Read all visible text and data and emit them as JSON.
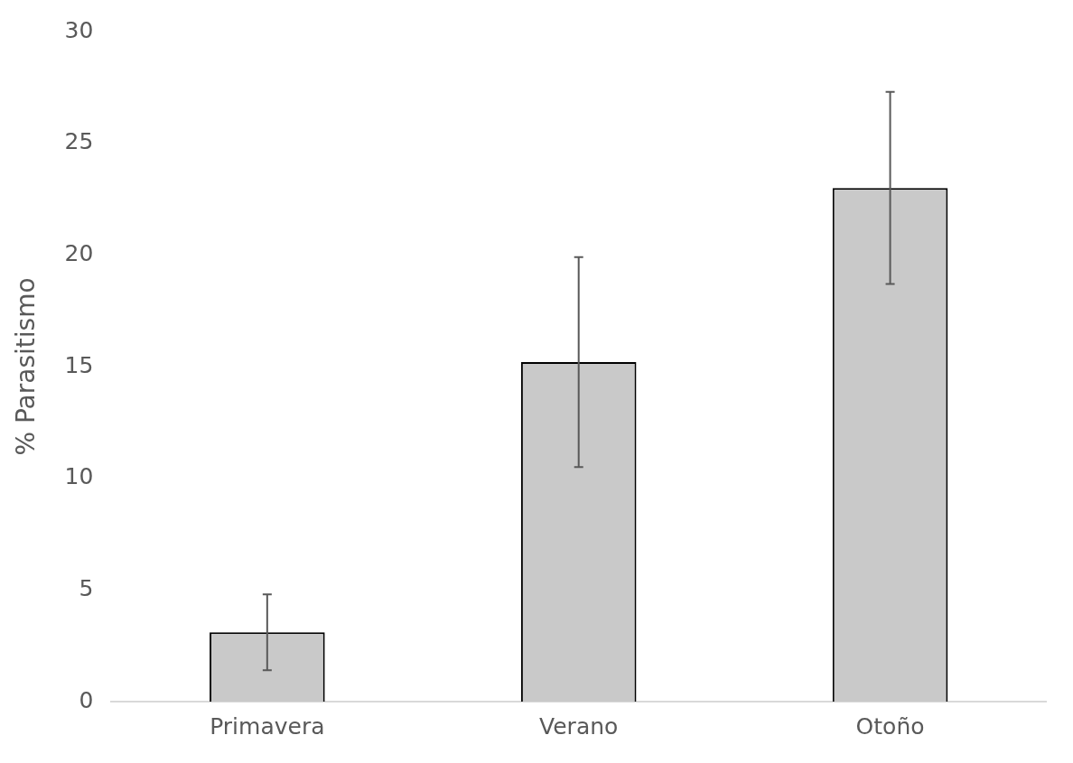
{
  "chart_data": {
    "type": "bar",
    "ylabel": "% Parasitismo",
    "categories": [
      "Primavera",
      "Verano",
      "Otoño"
    ],
    "series": [
      {
        "color": "#c9c9c9",
        "values": [
          3.1,
          15.2,
          23.0
        ],
        "errors": [
          1.7,
          4.7,
          4.3
        ]
      }
    ],
    "ylim": [
      0,
      30
    ],
    "yticks": [
      0,
      5,
      10,
      15,
      20,
      25,
      30
    ],
    "grid": false,
    "legend": false
  }
}
